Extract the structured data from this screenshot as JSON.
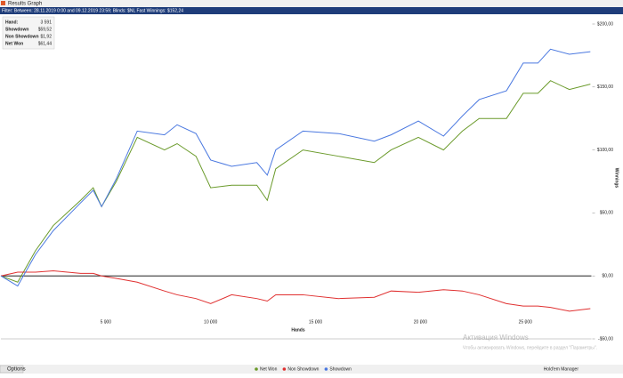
{
  "window": {
    "title": "Results Graph",
    "filter": "Filter: Between: 28.11.2019 0:00 and 09.12.2019 23:59; Blinds: $NL Fast Winnings: $152,24",
    "options": "Options",
    "app": "Hold'em Manager",
    "watermark_title": "Активация Windows",
    "watermark_text": "Чтобы активировать Windows, перейдите в раздел \"Параметры\"."
  },
  "stats": {
    "rows": [
      [
        "Hand:",
        "3 591"
      ],
      [
        "Showdown",
        "$59,52"
      ],
      [
        "Non Showdown",
        "$1,92"
      ],
      [
        "Net Won",
        "$61,44"
      ]
    ]
  },
  "chart_data": {
    "type": "line",
    "xlabel": "Hands",
    "ylabel": "Winnings",
    "x": [
      0,
      800,
      1650,
      2500,
      3800,
      4400,
      4800,
      5500,
      6500,
      7800,
      8400,
      9300,
      10000,
      11000,
      12200,
      12700,
      13100,
      14400,
      16100,
      17800,
      18600,
      19900,
      21100,
      22000,
      22800,
      24100,
      24900,
      25600,
      26200,
      27100,
      28100
    ],
    "series": [
      {
        "name": "Net Won",
        "color": "#6a9a2a",
        "values": [
          0,
          -5,
          20,
          40,
          60,
          70,
          55,
          75,
          110,
          100,
          105,
          95,
          70,
          72,
          72,
          60,
          85,
          100,
          95,
          90,
          100,
          110,
          100,
          115,
          125,
          125,
          145,
          145,
          155,
          148,
          152.24
        ]
      },
      {
        "name": "Non Showdown",
        "color": "#e03030",
        "values": [
          0,
          3,
          3,
          4,
          2,
          2,
          0,
          -2,
          -5,
          -12,
          -15,
          -18,
          -22,
          -15,
          -18,
          -20,
          -15,
          -15,
          -18,
          -17,
          -12,
          -13,
          -11,
          -12,
          -15,
          -22,
          -24,
          -24,
          -25,
          -28,
          -26
        ]
      },
      {
        "name": "Showdown",
        "color": "#4a78e0",
        "values": [
          0,
          -8,
          17,
          36,
          58,
          68,
          55,
          77,
          115,
          112,
          120,
          113,
          92,
          87,
          90,
          80,
          100,
          115,
          113,
          107,
          112,
          123,
          111,
          127,
          140,
          147,
          169,
          169,
          180,
          176,
          178
        ]
      }
    ],
    "xlim": [
      0,
      28150
    ],
    "ylim": [
      -50,
      200
    ],
    "xticks": [
      {
        "value": 5000,
        "label": "5 000"
      },
      {
        "value": 10000,
        "label": "10 000"
      },
      {
        "value": 15000,
        "label": "15 000"
      },
      {
        "value": 20000,
        "label": "20 000"
      },
      {
        "value": 25000,
        "label": "25 000"
      }
    ],
    "yticks": [
      {
        "value": -50,
        "label": "-$50,00"
      },
      {
        "value": 0,
        "label": "$0,00"
      },
      {
        "value": 50,
        "label": "$50,00"
      },
      {
        "value": 100,
        "label": "$100,00"
      },
      {
        "value": 150,
        "label": "$150,00"
      },
      {
        "value": 200,
        "label": "$200,00"
      }
    ],
    "legend": "bottom"
  }
}
